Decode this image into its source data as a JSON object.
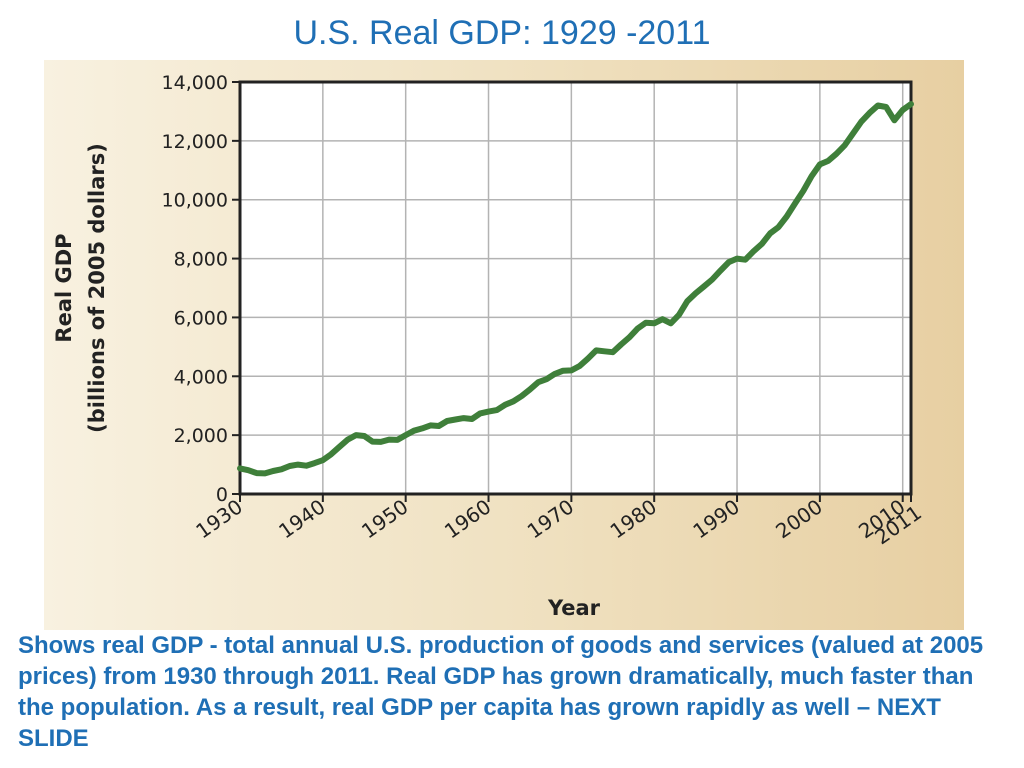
{
  "slide": {
    "title": "U.S. Real GDP: 1929 -2011",
    "caption": "Shows real GDP - total annual U.S. production of goods and services (valued at 2005 prices) from 1930 through 2011. Real GDP has grown dramatically, much faster than the population. As a result, real GDP per capita  has grown rapidly as well – NEXT SLIDE"
  },
  "chart_data": {
    "type": "line",
    "xlabel": "Year",
    "ylabel_line1": "Real GDP",
    "ylabel_line2": "(billions of 2005 dollars)",
    "xlim": [
      1930,
      2011
    ],
    "ylim": [
      0,
      14000
    ],
    "x_ticks": [
      1930,
      1940,
      1950,
      1960,
      1970,
      1980,
      1990,
      2000,
      2010,
      2011
    ],
    "x_tick_labels": [
      "1930",
      "1940",
      "1950",
      "1960",
      "1970",
      "1980",
      "1990",
      "2000",
      "2010",
      "2011"
    ],
    "y_ticks": [
      0,
      2000,
      4000,
      6000,
      8000,
      10000,
      12000,
      14000
    ],
    "y_tick_labels": [
      "0",
      "2,000",
      "4,000",
      "6,000",
      "8,000",
      "10,000",
      "12,000",
      "14,000"
    ],
    "grid": true,
    "line_color": "#3f7f3a",
    "series": [
      {
        "x": [
          1930,
          1931,
          1932,
          1933,
          1934,
          1935,
          1936,
          1937,
          1938,
          1939,
          1940,
          1941,
          1942,
          1943,
          1944,
          1945,
          1946,
          1947,
          1948,
          1949,
          1950,
          1951,
          1952,
          1953,
          1954,
          1955,
          1956,
          1957,
          1958,
          1959,
          1960,
          1961,
          1962,
          1963,
          1964,
          1965,
          1966,
          1967,
          1968,
          1969,
          1970,
          1971,
          1972,
          1973,
          1974,
          1975,
          1976,
          1977,
          1978,
          1979,
          1980,
          1981,
          1982,
          1983,
          1984,
          1985,
          1986,
          1987,
          1988,
          1989,
          1990,
          1991,
          1992,
          1993,
          1994,
          1995,
          1996,
          1997,
          1998,
          1999,
          2000,
          2001,
          2002,
          2003,
          2004,
          2005,
          2006,
          2007,
          2008,
          2009,
          2010,
          2011
        ],
        "values": [
          870,
          810,
          710,
          700,
          780,
          840,
          950,
          1000,
          960,
          1050,
          1150,
          1350,
          1600,
          1850,
          2000,
          1970,
          1780,
          1770,
          1850,
          1840,
          2000,
          2150,
          2230,
          2330,
          2310,
          2480,
          2530,
          2580,
          2550,
          2740,
          2800,
          2850,
          3030,
          3150,
          3330,
          3550,
          3800,
          3900,
          4080,
          4190,
          4200,
          4350,
          4600,
          4880,
          4850,
          4820,
          5080,
          5320,
          5620,
          5820,
          5800,
          5940,
          5800,
          6090,
          6550,
          6820,
          7050,
          7290,
          7590,
          7880,
          8000,
          7960,
          8250,
          8500,
          8860,
          9070,
          9430,
          9870,
          10300,
          10800,
          11200,
          11320,
          11560,
          11850,
          12250,
          12650,
          12950,
          13200,
          13150,
          12700,
          13050,
          13250
        ]
      }
    ]
  }
}
